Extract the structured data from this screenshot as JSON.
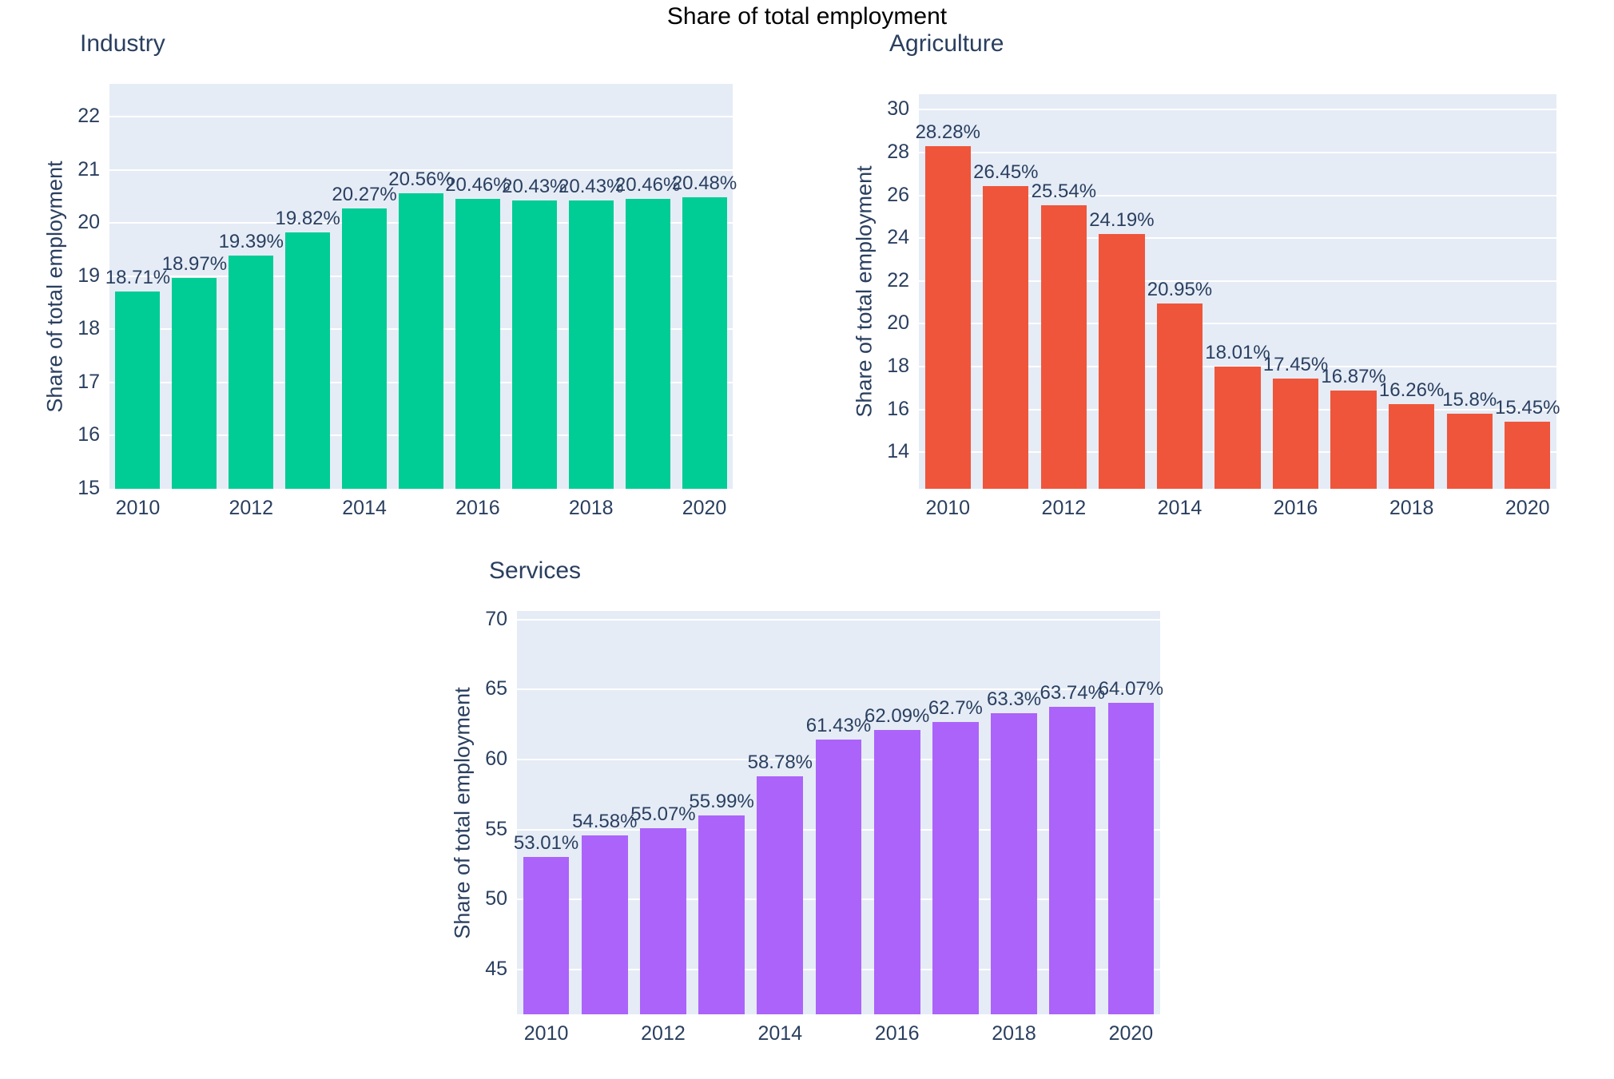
{
  "page_title": "Share of total employment",
  "colors": {
    "industry_bar": "#00CC96",
    "agriculture_bar": "#EF553B",
    "services_bar": "#AB63FA",
    "plot_background": "#E5ECF6",
    "gridline": "#FFFFFF",
    "axis_text": "#2A3F5F",
    "main_title_text": "#000000"
  },
  "chart_data": [
    {
      "type": "bar",
      "title": "Industry",
      "xlabel": "",
      "ylabel": "Share of total employment",
      "legend_position": "none",
      "grid": true,
      "color": "#00CC96",
      "x": [
        2010,
        2011,
        2012,
        2013,
        2014,
        2015,
        2016,
        2017,
        2018,
        2019,
        2020
      ],
      "values": [
        18.71,
        18.97,
        19.39,
        19.82,
        20.27,
        20.56,
        20.46,
        20.43,
        20.43,
        20.46,
        20.48
      ],
      "labels": [
        "18.71%",
        "18.97%",
        "19.39%",
        "19.82%",
        "20.27%",
        "20.56%",
        "20.46%",
        "20.43%",
        "20.43%",
        "20.46%",
        "20.48%"
      ],
      "yticks": [
        15,
        16,
        17,
        18,
        19,
        20,
        21,
        22
      ],
      "xticks": [
        2010,
        2012,
        2014,
        2016,
        2018,
        2020
      ],
      "ylim": [
        15,
        22.62
      ]
    },
    {
      "type": "bar",
      "title": "Agriculture",
      "xlabel": "",
      "ylabel": "Share of total employment",
      "legend_position": "none",
      "grid": true,
      "color": "#EF553B",
      "x": [
        2010,
        2011,
        2012,
        2013,
        2014,
        2015,
        2016,
        2017,
        2018,
        2019,
        2020
      ],
      "values": [
        28.28,
        26.45,
        25.54,
        24.19,
        20.95,
        18.01,
        17.45,
        16.87,
        16.26,
        15.8,
        15.45
      ],
      "labels": [
        "28.28%",
        "26.45%",
        "25.54%",
        "24.19%",
        "20.95%",
        "18.01%",
        "17.45%",
        "16.87%",
        "16.26%",
        "15.8%",
        "15.45%"
      ],
      "yticks": [
        14,
        16,
        18,
        20,
        22,
        24,
        26,
        28,
        30
      ],
      "xticks": [
        2010,
        2012,
        2014,
        2016,
        2018,
        2020
      ],
      "ylim": [
        12.3,
        30.72
      ]
    },
    {
      "type": "bar",
      "title": "Services",
      "xlabel": "",
      "ylabel": "Share of total employment",
      "legend_position": "none",
      "grid": true,
      "color": "#AB63FA",
      "x": [
        2010,
        2011,
        2012,
        2013,
        2014,
        2015,
        2016,
        2017,
        2018,
        2019,
        2020
      ],
      "values": [
        53.01,
        54.58,
        55.07,
        55.99,
        58.78,
        61.43,
        62.09,
        62.7,
        63.3,
        63.74,
        64.07
      ],
      "labels": [
        "53.01%",
        "54.58%",
        "55.07%",
        "55.99%",
        "58.78%",
        "61.43%",
        "62.09%",
        "62.7%",
        "63.3%",
        "63.74%",
        "64.07%"
      ],
      "yticks": [
        45,
        50,
        55,
        60,
        65,
        70
      ],
      "xticks": [
        2010,
        2012,
        2014,
        2016,
        2018,
        2020
      ],
      "ylim": [
        41.8,
        70.6
      ]
    }
  ]
}
